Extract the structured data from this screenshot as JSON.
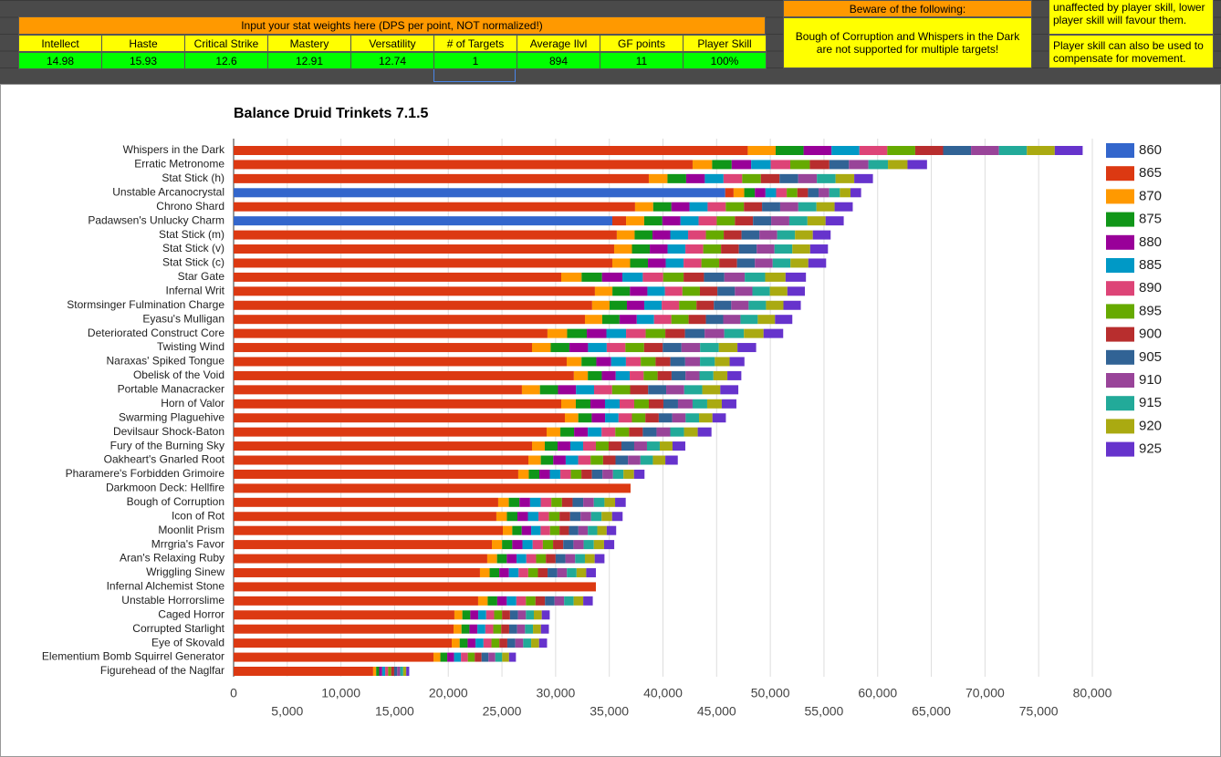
{
  "sheet": {
    "input_title": "Input your stat weights here (DPS per point, NOT normalized!)",
    "headers": [
      "Intellect",
      "Haste",
      "Critical Strike",
      "Mastery",
      "Versatility",
      "# of Targets",
      "Average Ilvl",
      "GF points",
      "Player Skill"
    ],
    "values": [
      "14.98",
      "15.93",
      "12.6",
      "12.91",
      "12.74",
      "1",
      "894",
      "11",
      "100%"
    ],
    "warning_title": "Beware of the following:",
    "warning_text": "Bough of Corruption and Whispers in the Dark are not supported for multiple targets!",
    "notes": [
      "unaffected by player skill, lower player skill will favour them.",
      "Player skill can also be used to compensate for movement."
    ]
  },
  "chart_data": {
    "type": "stacked_bar",
    "title": "Balance Druid Trinkets 7.1.5",
    "categories": [
      "Whispers in the Dark",
      "Erratic Metronome",
      "Stat Stick (h)",
      "Unstable Arcanocrystal",
      "Chrono Shard",
      "Padawsen's Unlucky Charm",
      "Stat Stick (m)",
      "Stat Stick (v)",
      "Stat Stick (c)",
      "Star Gate",
      "Infernal Writ",
      "Stormsinger Fulmination Charge",
      "Eyasu's Mulligan",
      "Deteriorated Construct Core",
      "Twisting Wind",
      "Naraxas' Spiked Tongue",
      "Obelisk of the Void",
      "Portable Manacracker",
      "Horn of Valor",
      "Swarming Plaguehive",
      "Devilsaur Shock-Baton",
      "Fury of the Burning Sky",
      "Oakheart's Gnarled Root",
      "Pharamere's Forbidden Grimoire",
      "Darkmoon Deck: Hellfire",
      "Bough of Corruption",
      "Icon of Rot",
      "Moonlit Prism",
      "Mrrgria's Favor",
      "Aran's Relaxing Ruby",
      "Wriggling Sinew",
      "Infernal Alchemist Stone",
      "Unstable Horrorslime",
      "Caged Horror",
      "Corrupted Starlight",
      "Eye of Skovald",
      "Elementium Bomb Squirrel Generator",
      "Figurehead of the Naglfar"
    ],
    "series": [
      {
        "name": "860",
        "color": "#3366cc",
        "values": [
          null,
          null,
          null,
          45800,
          null,
          35280,
          null,
          null,
          null,
          null,
          null,
          null,
          null,
          null,
          null,
          null,
          null,
          null,
          null,
          null,
          null,
          null,
          null,
          null,
          null,
          null,
          null,
          null,
          null,
          null,
          null,
          null,
          null,
          null,
          null,
          null,
          null,
          null
        ]
      },
      {
        "name": "865",
        "color": "#dc3912",
        "values": [
          47900,
          42760,
          38680,
          780,
          37400,
          1280,
          35700,
          35450,
          35280,
          30520,
          33660,
          33400,
          32730,
          29240,
          27800,
          31030,
          31700,
          26860,
          30520,
          30860,
          29160,
          27800,
          27460,
          26520,
          36980,
          24650,
          24480,
          25080,
          24060,
          23630,
          22950,
          33750,
          22780,
          20570,
          20490,
          20320,
          18620,
          13000
        ]
      },
      {
        "name": "870",
        "color": "#ff9900",
        "values": [
          2600,
          1820,
          1740,
          990,
          1690,
          1690,
          1660,
          1660,
          1660,
          1900,
          1630,
          1620,
          1610,
          1830,
          1740,
          1380,
          1300,
          1680,
          1360,
          1250,
          1280,
          1190,
          1160,
          980,
          null,
          990,
          980,
          880,
          950,
          910,
          900,
          null,
          890,
          740,
          740,
          740,
          640,
          280
        ]
      },
      {
        "name": "875",
        "color": "#109618",
        "values": [
          2600,
          1820,
          1740,
          990,
          1690,
          1690,
          1660,
          1660,
          1660,
          1900,
          1630,
          1620,
          1610,
          1830,
          1740,
          1380,
          1300,
          1680,
          1360,
          1250,
          1280,
          1190,
          1160,
          980,
          null,
          990,
          980,
          880,
          950,
          910,
          900,
          null,
          890,
          740,
          740,
          740,
          640,
          280
        ]
      },
      {
        "name": "880",
        "color": "#990099",
        "values": [
          2600,
          1820,
          1740,
          990,
          1690,
          1690,
          1660,
          1660,
          1660,
          1900,
          1630,
          1620,
          1610,
          1830,
          1740,
          1380,
          1300,
          1680,
          1360,
          1250,
          1280,
          1190,
          1160,
          980,
          null,
          990,
          980,
          880,
          950,
          910,
          900,
          null,
          890,
          740,
          740,
          740,
          640,
          280
        ]
      },
      {
        "name": "885",
        "color": "#0099c6",
        "values": [
          2600,
          1820,
          1740,
          990,
          1690,
          1690,
          1660,
          1660,
          1660,
          1900,
          1630,
          1620,
          1610,
          1830,
          1740,
          1380,
          1300,
          1680,
          1360,
          1250,
          1280,
          1190,
          1160,
          980,
          null,
          990,
          980,
          880,
          950,
          910,
          900,
          null,
          890,
          740,
          740,
          740,
          640,
          280
        ]
      },
      {
        "name": "890",
        "color": "#dd4477",
        "values": [
          2600,
          1820,
          1740,
          990,
          1690,
          1690,
          1660,
          1660,
          1660,
          1900,
          1630,
          1620,
          1610,
          1830,
          1740,
          1380,
          1300,
          1680,
          1360,
          1250,
          1280,
          1190,
          1160,
          980,
          null,
          990,
          980,
          880,
          950,
          910,
          900,
          null,
          890,
          740,
          740,
          740,
          640,
          280
        ]
      },
      {
        "name": "895",
        "color": "#66aa00",
        "values": [
          2600,
          1820,
          1740,
          990,
          1690,
          1690,
          1660,
          1660,
          1660,
          1900,
          1630,
          1620,
          1610,
          1830,
          1740,
          1380,
          1300,
          1680,
          1360,
          1250,
          1280,
          1190,
          1160,
          980,
          null,
          990,
          980,
          880,
          950,
          910,
          900,
          null,
          890,
          740,
          740,
          740,
          640,
          280
        ]
      },
      {
        "name": "900",
        "color": "#b82e2e",
        "values": [
          2600,
          1820,
          1740,
          990,
          1690,
          1690,
          1660,
          1660,
          1660,
          1900,
          1630,
          1620,
          1610,
          1830,
          1740,
          1380,
          1300,
          1680,
          1360,
          1250,
          1280,
          1190,
          1160,
          980,
          null,
          990,
          980,
          880,
          950,
          910,
          900,
          null,
          890,
          740,
          740,
          740,
          640,
          280
        ]
      },
      {
        "name": "905",
        "color": "#316395",
        "values": [
          2600,
          1820,
          1740,
          990,
          1690,
          1690,
          1660,
          1660,
          1660,
          1900,
          1630,
          1620,
          1610,
          1830,
          1740,
          1380,
          1300,
          1680,
          1360,
          1250,
          1280,
          1190,
          1160,
          980,
          null,
          990,
          980,
          880,
          950,
          910,
          900,
          null,
          890,
          740,
          740,
          740,
          640,
          280
        ]
      },
      {
        "name": "910",
        "color": "#994499",
        "values": [
          2600,
          1820,
          1740,
          990,
          1690,
          1690,
          1660,
          1660,
          1660,
          1900,
          1630,
          1620,
          1610,
          1830,
          1740,
          1380,
          1300,
          1680,
          1360,
          1250,
          1280,
          1190,
          1160,
          980,
          null,
          990,
          980,
          880,
          950,
          910,
          900,
          null,
          890,
          740,
          740,
          740,
          640,
          280
        ]
      },
      {
        "name": "915",
        "color": "#22aa99",
        "values": [
          2600,
          1820,
          1740,
          990,
          1690,
          1690,
          1660,
          1660,
          1660,
          1900,
          1630,
          1620,
          1610,
          1830,
          1740,
          1380,
          1300,
          1680,
          1360,
          1250,
          1280,
          1190,
          1160,
          980,
          null,
          990,
          980,
          880,
          950,
          910,
          900,
          null,
          890,
          740,
          740,
          740,
          640,
          280
        ]
      },
      {
        "name": "920",
        "color": "#aaaa11",
        "values": [
          2600,
          1820,
          1740,
          990,
          1690,
          1690,
          1660,
          1660,
          1660,
          1900,
          1630,
          1620,
          1610,
          1830,
          1740,
          1380,
          1300,
          1680,
          1360,
          1250,
          1280,
          1190,
          1160,
          980,
          null,
          990,
          980,
          880,
          950,
          910,
          900,
          null,
          890,
          740,
          740,
          740,
          640,
          280
        ]
      },
      {
        "name": "925",
        "color": "#6633cc",
        "values": [
          2600,
          1820,
          1740,
          990,
          1690,
          1690,
          1660,
          1660,
          1660,
          1900,
          1630,
          1620,
          1610,
          1830,
          1740,
          1380,
          1300,
          1680,
          1360,
          1250,
          1280,
          1190,
          1160,
          980,
          null,
          990,
          980,
          880,
          950,
          910,
          900,
          null,
          890,
          740,
          740,
          740,
          640,
          280
        ]
      }
    ],
    "xlim": [
      0,
      80000
    ],
    "xticks": [
      0,
      {
        "value": 5000,
        "label": "5,000"
      },
      {
        "value": 10000,
        "label": "10,000"
      },
      {
        "value": 15000,
        "label": "15,000"
      },
      {
        "value": 20000,
        "label": "20,000"
      },
      {
        "value": 25000,
        "label": "25,000"
      },
      {
        "value": 30000,
        "label": "30,000"
      },
      {
        "value": 35000,
        "label": "35,000"
      },
      {
        "value": 40000,
        "label": "40,000"
      },
      {
        "value": 45000,
        "label": "45,000"
      },
      {
        "value": 50000,
        "label": "50,000"
      },
      {
        "value": 55000,
        "label": "55,000"
      },
      {
        "value": 60000,
        "label": "60,000"
      },
      {
        "value": 65000,
        "label": "65,000"
      },
      {
        "value": 70000,
        "label": "70,000"
      },
      {
        "value": 75000,
        "label": "75,000"
      },
      {
        "value": 80000,
        "label": "80,000"
      }
    ],
    "grid": true,
    "legend": "right"
  }
}
